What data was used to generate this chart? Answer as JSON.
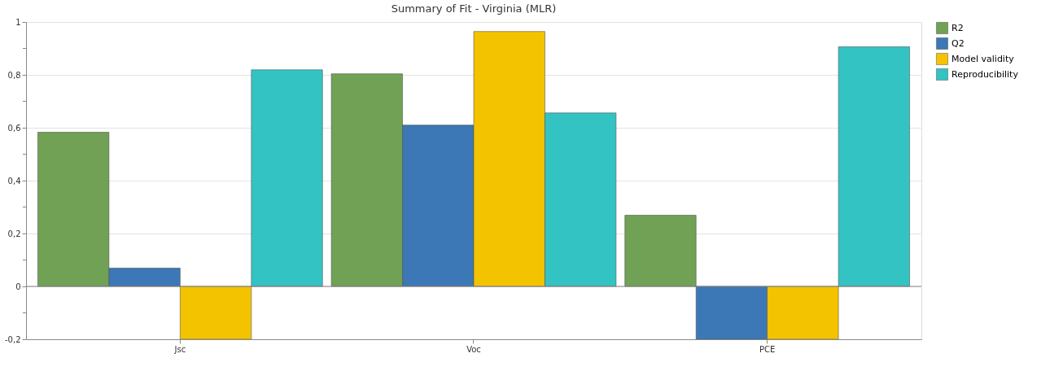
{
  "chart_data": {
    "type": "bar",
    "title": "Summary of Fit - Virginia (MLR)",
    "categories": [
      "Jsc",
      "Voc",
      "PCE"
    ],
    "series": [
      {
        "name": "R2",
        "color": "#70a154",
        "values": [
          0.583,
          0.804,
          0.269
        ]
      },
      {
        "name": "Q2",
        "color": "#3b78b5",
        "values": [
          0.069,
          0.61,
          -0.2
        ]
      },
      {
        "name": "Model validity",
        "color": "#f4c300",
        "values": [
          -0.2,
          0.964,
          -0.2
        ]
      },
      {
        "name": "Reproducibility",
        "color": "#33c3c3",
        "values": [
          0.819,
          0.656,
          0.906
        ]
      }
    ],
    "ylim": [
      -0.2,
      1
    ],
    "yticks": [
      {
        "value": -0.2,
        "label": "-0,2"
      },
      {
        "value": -0.1,
        "label": null
      },
      {
        "value": 0,
        "label": "0"
      },
      {
        "value": 0.1,
        "label": null
      },
      {
        "value": 0.2,
        "label": "0,2"
      },
      {
        "value": 0.3,
        "label": null
      },
      {
        "value": 0.4,
        "label": "0,4"
      },
      {
        "value": 0.5,
        "label": null
      },
      {
        "value": 0.6,
        "label": "0,6"
      },
      {
        "value": 0.7,
        "label": null
      },
      {
        "value": 0.8,
        "label": "0,8"
      },
      {
        "value": 0.9,
        "label": null
      },
      {
        "value": 1,
        "label": "1"
      }
    ],
    "grid": "y",
    "legend": "top right"
  }
}
